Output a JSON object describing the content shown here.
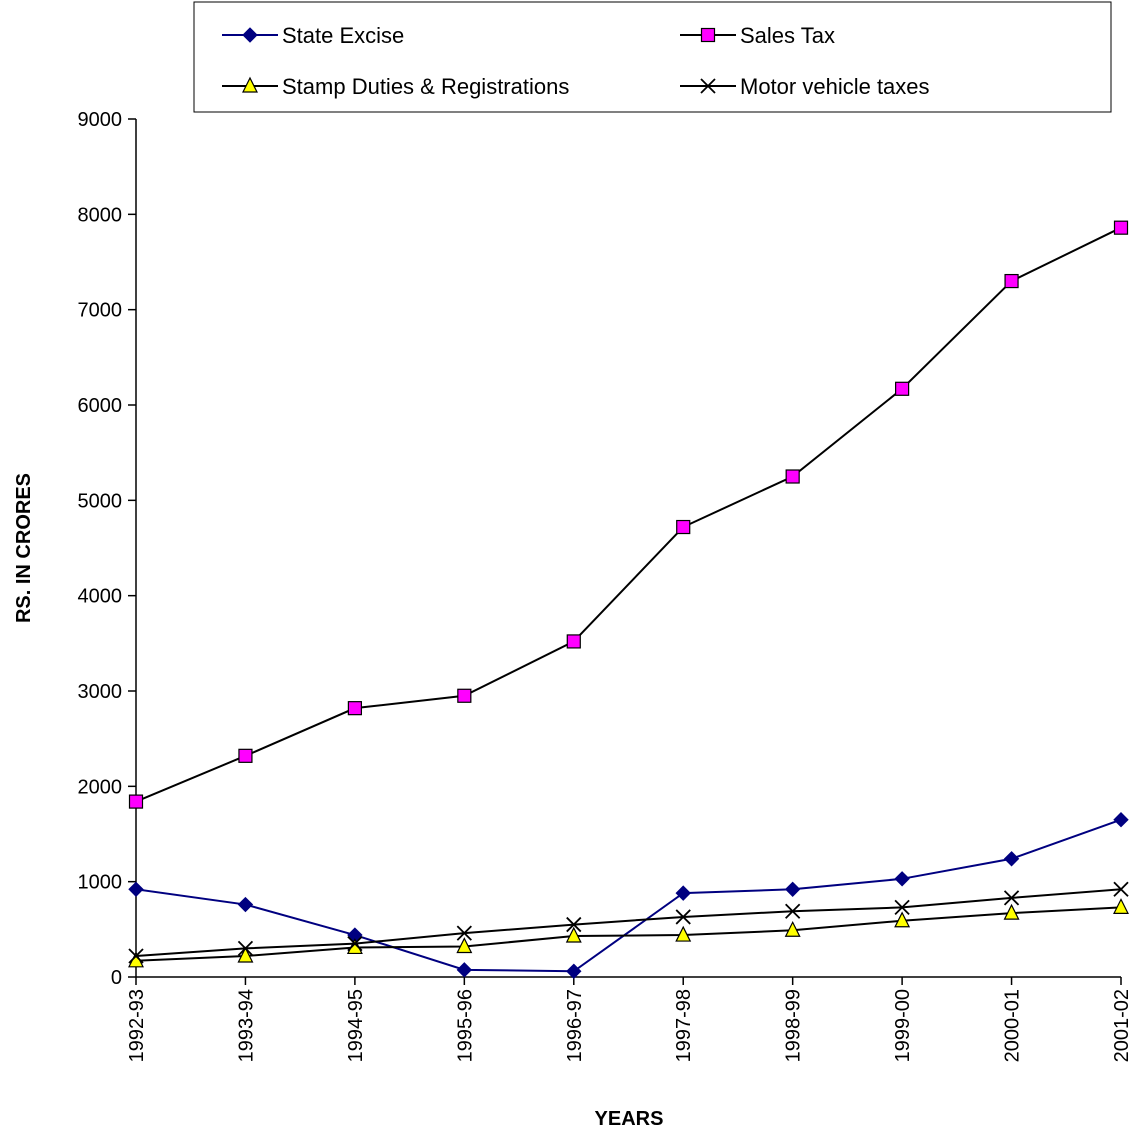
{
  "chart_data": {
    "type": "line",
    "title": "",
    "xlabel": "YEARS",
    "ylabel": "RS.  IN  CRORES",
    "ylim": [
      0,
      9000
    ],
    "yticks": [
      0,
      1000,
      2000,
      3000,
      4000,
      5000,
      6000,
      7000,
      8000,
      9000
    ],
    "categories": [
      "1992-93",
      "1993-94",
      "1994-95",
      "1995-96",
      "1996-97",
      "1997-98",
      "1998-99",
      "1999-00",
      "2000-01",
      "2001-02"
    ],
    "grid": false,
    "legend_position": "top",
    "series": [
      {
        "name": "State Excise",
        "marker": "diamond",
        "line_color": "#000080",
        "marker_fill": "#000080",
        "values": [
          920,
          760,
          440,
          75,
          60,
          880,
          920,
          1030,
          1240,
          1650
        ]
      },
      {
        "name": "Sales Tax",
        "marker": "square",
        "line_color": "#000000",
        "marker_fill": "#ff00ff",
        "values": [
          1840,
          2320,
          2820,
          2950,
          3520,
          4720,
          5250,
          6170,
          7300,
          7860
        ]
      },
      {
        "name": "Stamp Duties & Registrations",
        "marker": "triangle",
        "line_color": "#000000",
        "marker_fill": "#ffff00",
        "values": [
          170,
          220,
          310,
          320,
          430,
          440,
          490,
          590,
          670,
          730
        ]
      },
      {
        "name": "Motor vehicle taxes",
        "marker": "x",
        "line_color": "#000000",
        "marker_fill": "none",
        "values": [
          220,
          300,
          350,
          460,
          550,
          630,
          690,
          730,
          830,
          920
        ]
      }
    ]
  }
}
